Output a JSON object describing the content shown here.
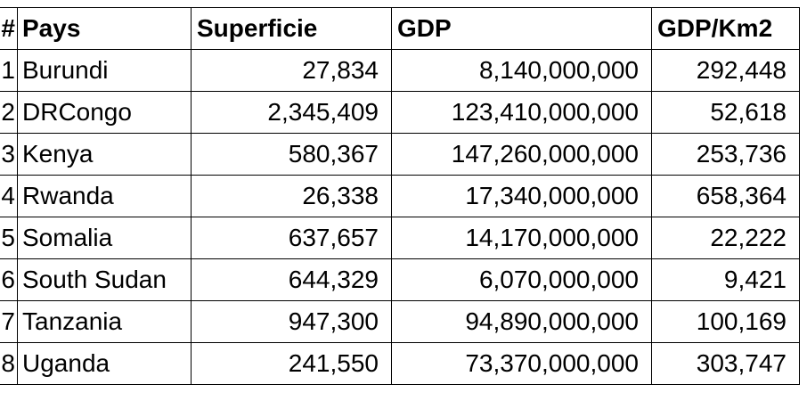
{
  "table": {
    "headers": [
      "#",
      "Pays",
      "Superficie",
      "GDP",
      "GDP/Km2"
    ],
    "rows": [
      [
        "1",
        "Burundi",
        "27,834",
        "8,140,000,000",
        "292,448"
      ],
      [
        "2",
        "DRCongo",
        "2,345,409",
        "123,410,000,000",
        "52,618"
      ],
      [
        "3",
        "Kenya",
        "580,367",
        "147,260,000,000",
        "253,736"
      ],
      [
        "4",
        "Rwanda",
        "26,338",
        "17,340,000,000",
        "658,364"
      ],
      [
        "5",
        "Somalia",
        "637,657",
        "14,170,000,000",
        "22,222"
      ],
      [
        "6",
        "South Sudan",
        "644,329",
        "6,070,000,000",
        "9,421"
      ],
      [
        "7",
        "Tanzania",
        "947,300",
        "94,890,000,000",
        "100,169"
      ],
      [
        "8",
        "Uganda",
        "241,550",
        "73,370,000,000",
        "303,747"
      ]
    ]
  }
}
